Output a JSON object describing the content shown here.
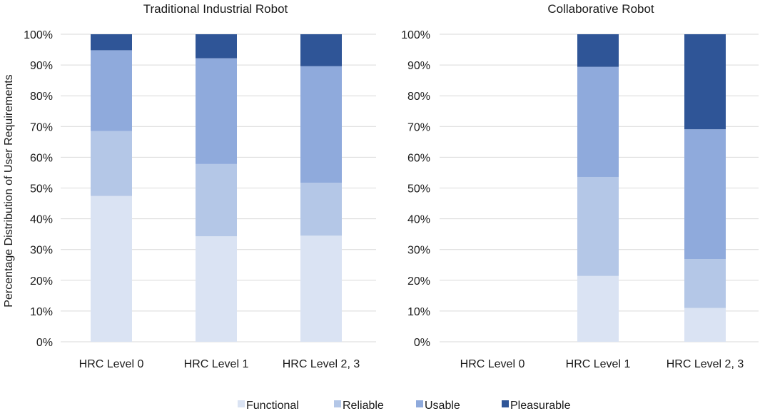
{
  "chart_data": [
    {
      "type": "bar",
      "stacked": true,
      "title": "Traditional Industrial Robot",
      "ylabel": "Percentage Distribution of User Requirements",
      "categories": [
        "HRC Level 0",
        "HRC Level 1",
        "HRC Level 2, 3"
      ],
      "y_ticks": [
        "0%",
        "10%",
        "20%",
        "30%",
        "40%",
        "50%",
        "60%",
        "70%",
        "80%",
        "90%",
        "100%"
      ],
      "ylim": [
        0,
        100
      ],
      "grid": true,
      "series": [
        {
          "name": "Functional",
          "values": [
            47.4,
            34.3,
            34.5
          ],
          "color": "#dae3f3"
        },
        {
          "name": "Reliable",
          "values": [
            21.1,
            23.5,
            17.2
          ],
          "color": "#b4c7e7"
        },
        {
          "name": "Usable",
          "values": [
            26.3,
            34.4,
            37.9
          ],
          "color": "#8faadc"
        },
        {
          "name": "Pleasurable",
          "values": [
            5.2,
            7.8,
            10.4
          ],
          "color": "#2f5597"
        }
      ]
    },
    {
      "type": "bar",
      "stacked": true,
      "title": "Collaborative Robot",
      "ylabel": "",
      "categories": [
        "HRC Level 0",
        "HRC Level 1",
        "HRC Level 2, 3"
      ],
      "y_ticks": [
        "0%",
        "10%",
        "20%",
        "30%",
        "40%",
        "50%",
        "60%",
        "70%",
        "80%",
        "90%",
        "100%"
      ],
      "ylim": [
        0,
        100
      ],
      "grid": true,
      "series": [
        {
          "name": "Functional",
          "values": [
            0,
            21.4,
            11.0
          ],
          "color": "#dae3f3"
        },
        {
          "name": "Reliable",
          "values": [
            0,
            32.2,
            15.9
          ],
          "color": "#b4c7e7"
        },
        {
          "name": "Usable",
          "values": [
            0,
            35.8,
            42.2
          ],
          "color": "#8faadc"
        },
        {
          "name": "Pleasurable",
          "values": [
            0,
            10.6,
            30.9
          ],
          "color": "#2f5597"
        }
      ]
    }
  ],
  "legend": {
    "position": "bottom",
    "items": [
      "Functional",
      "Reliable",
      "Usable",
      "Pleasurable"
    ]
  }
}
